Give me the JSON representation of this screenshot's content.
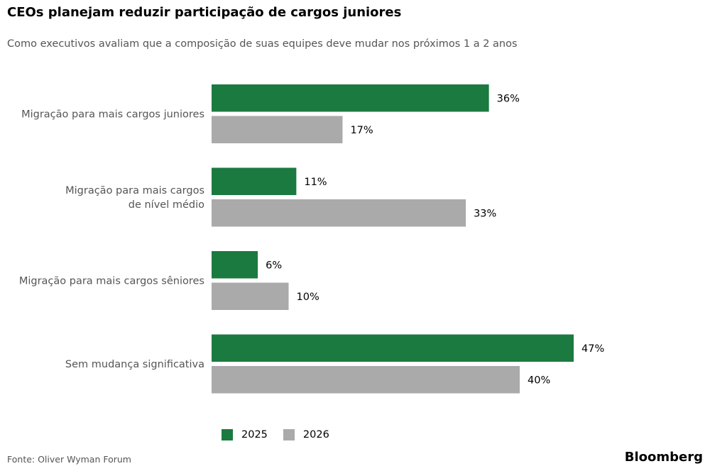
{
  "header": {
    "title": "CEOs planejam reduzir participação de cargos juniores",
    "subtitle": "Como executivos avaliam que a composição de suas equipes deve mudar nos próximos 1 a 2 anos"
  },
  "chart_data": {
    "type": "bar",
    "orientation": "horizontal",
    "categories": [
      [
        "Migração para mais cargos juniores"
      ],
      [
        "Migração para mais cargos",
        "de nível médio"
      ],
      [
        "Migração para mais cargos sêniores"
      ],
      [
        "Sem mudança significativa"
      ]
    ],
    "series": [
      {
        "name": "2025",
        "color": "#1b7a3f",
        "values": [
          36,
          11,
          6,
          47
        ],
        "labels": [
          "36%",
          "11%",
          "6%",
          "47%"
        ]
      },
      {
        "name": "2026",
        "color": "#aaaaaa",
        "values": [
          17,
          33,
          10,
          40
        ],
        "labels": [
          "17%",
          "33%",
          "10%",
          "40%"
        ]
      }
    ],
    "xlim": [
      0,
      47
    ],
    "grid": false,
    "legend_position": "bottom"
  },
  "footer": {
    "source": "Fonte: Oliver Wyman Forum",
    "brand": "Bloomberg"
  }
}
